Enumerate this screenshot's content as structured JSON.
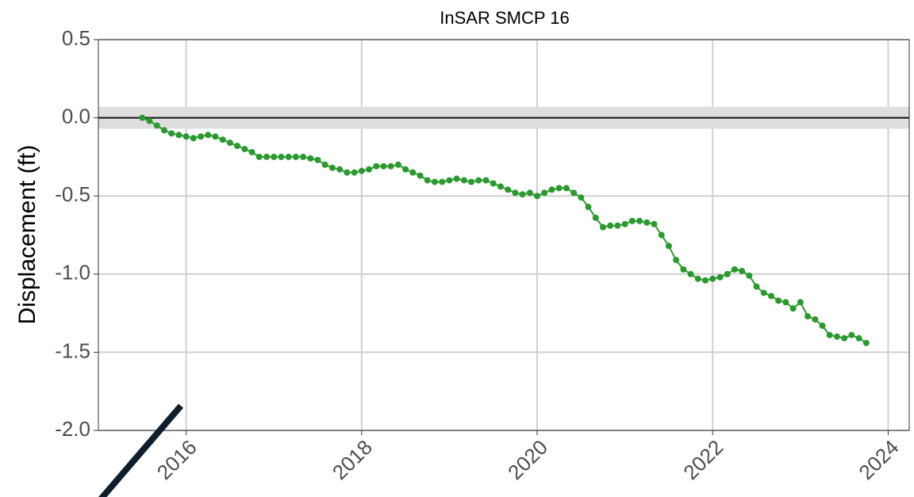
{
  "chart_data": {
    "type": "line",
    "title": "InSAR SMCP 16",
    "ylabel": "Displacement (ft)",
    "xlim": [
      2015.0,
      2024.24
    ],
    "xticks": [
      2016,
      2018,
      2020,
      2022,
      2024
    ],
    "ylim": [
      -2.0,
      0.5
    ],
    "yticks": [
      0.5,
      {
        "value": 0.0,
        "label": "0.0"
      },
      -0.5,
      {
        "value": -1.0,
        "label": "-1.0"
      },
      -1.5,
      {
        "value": -2.0,
        "label": "-2.0"
      }
    ],
    "grid": true,
    "reference_line": 0,
    "reference_band": [
      -0.07,
      0.07
    ],
    "series": [
      {
        "color": "#2a9a2f",
        "x": [
          2015.5,
          2015.583,
          2015.667,
          2015.75,
          2015.833,
          2015.917,
          2016.0,
          2016.083,
          2016.167,
          2016.25,
          2016.333,
          2016.417,
          2016.5,
          2016.583,
          2016.667,
          2016.75,
          2016.833,
          2016.917,
          2017.0,
          2017.083,
          2017.167,
          2017.25,
          2017.333,
          2017.417,
          2017.5,
          2017.583,
          2017.667,
          2017.75,
          2017.833,
          2017.917,
          2018.0,
          2018.083,
          2018.167,
          2018.25,
          2018.333,
          2018.417,
          2018.5,
          2018.583,
          2018.667,
          2018.75,
          2018.833,
          2018.917,
          2019.0,
          2019.083,
          2019.167,
          2019.25,
          2019.333,
          2019.417,
          2019.5,
          2019.583,
          2019.667,
          2019.75,
          2019.833,
          2019.917,
          2020.0,
          2020.083,
          2020.167,
          2020.25,
          2020.333,
          2020.417,
          2020.5,
          2020.583,
          2020.667,
          2020.75,
          2020.833,
          2020.917,
          2021.0,
          2021.083,
          2021.167,
          2021.25,
          2021.333,
          2021.417,
          2021.5,
          2021.583,
          2021.667,
          2021.75,
          2021.833,
          2021.917,
          2022.0,
          2022.083,
          2022.167,
          2022.25,
          2022.333,
          2022.417,
          2022.5,
          2022.583,
          2022.667,
          2022.75,
          2022.833,
          2022.917,
          2023.0,
          2023.083,
          2023.167,
          2023.25,
          2023.333,
          2023.417,
          2023.5,
          2023.583,
          2023.667,
          2023.75
        ],
        "values": [
          0.0,
          -0.02,
          -0.05,
          -0.08,
          -0.1,
          -0.11,
          -0.12,
          -0.13,
          -0.12,
          -0.11,
          -0.12,
          -0.14,
          -0.16,
          -0.18,
          -0.2,
          -0.22,
          -0.25,
          -0.25,
          -0.25,
          -0.25,
          -0.25,
          -0.25,
          -0.25,
          -0.26,
          -0.27,
          -0.3,
          -0.32,
          -0.33,
          -0.35,
          -0.35,
          -0.34,
          -0.33,
          -0.31,
          -0.31,
          -0.31,
          -0.3,
          -0.33,
          -0.35,
          -0.37,
          -0.4,
          -0.41,
          -0.41,
          -0.4,
          -0.39,
          -0.4,
          -0.41,
          -0.4,
          -0.4,
          -0.42,
          -0.44,
          -0.46,
          -0.48,
          -0.49,
          -0.48,
          -0.5,
          -0.48,
          -0.46,
          -0.45,
          -0.45,
          -0.48,
          -0.51,
          -0.57,
          -0.64,
          -0.7,
          -0.69,
          -0.69,
          -0.68,
          -0.66,
          -0.66,
          -0.67,
          -0.68,
          -0.75,
          -0.82,
          -0.91,
          -0.97,
          -1.0,
          -1.03,
          -1.04,
          -1.03,
          -1.02,
          -1.0,
          -0.97,
          -0.98,
          -1.01,
          -1.08,
          -1.12,
          -1.14,
          -1.17,
          -1.18,
          -1.22,
          -1.18,
          -1.27,
          -1.29,
          -1.33,
          -1.39,
          -1.4,
          -1.41,
          -1.39,
          -1.41,
          -1.44
        ]
      }
    ]
  }
}
